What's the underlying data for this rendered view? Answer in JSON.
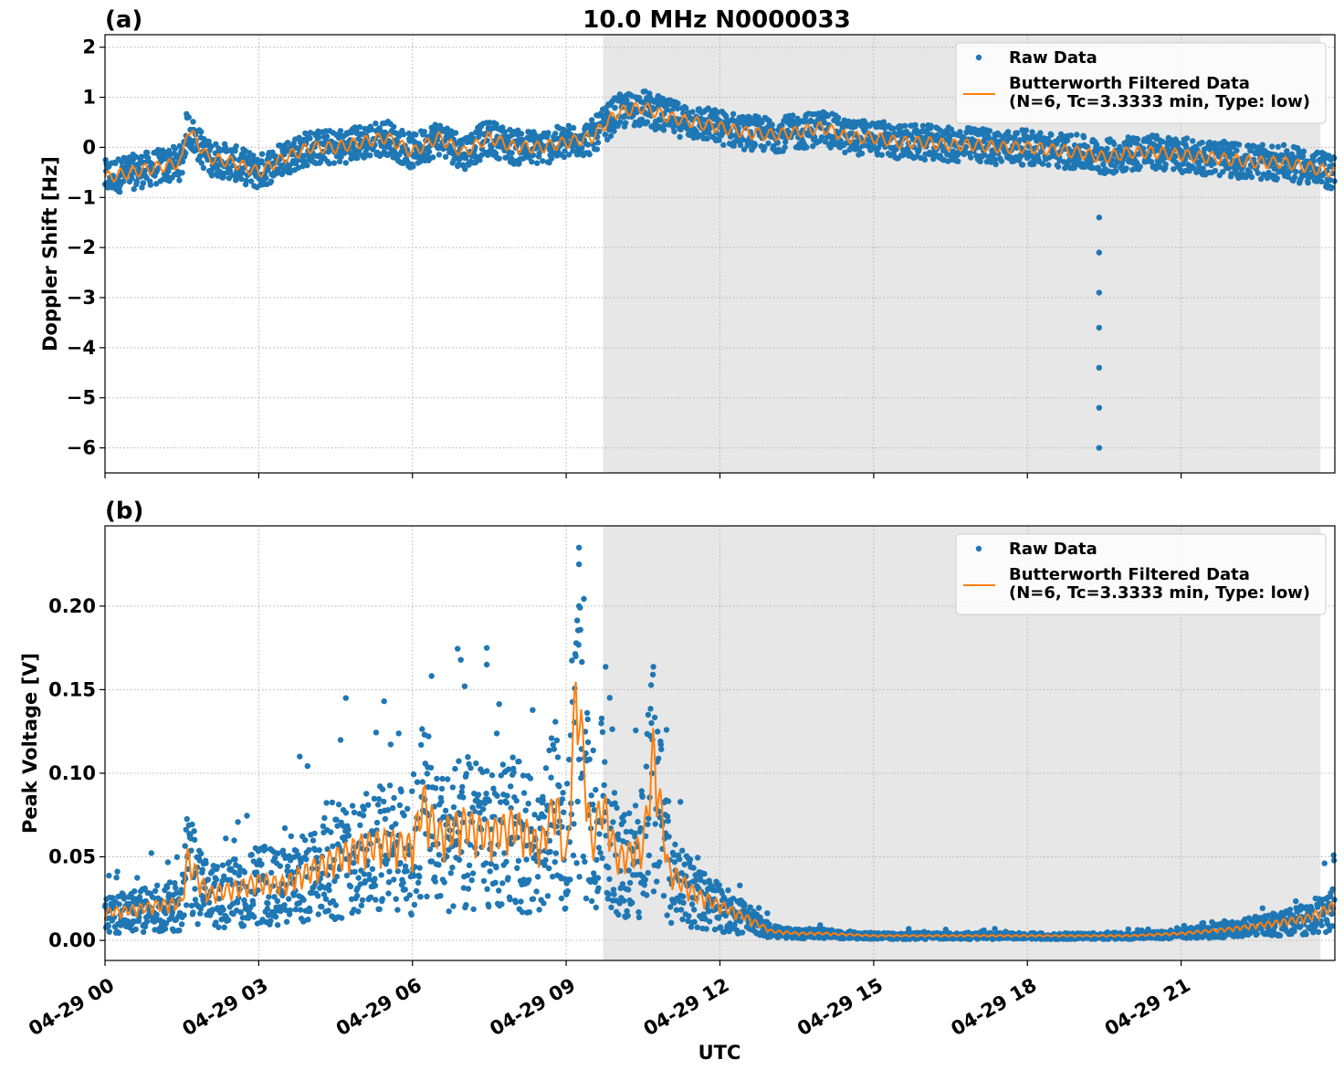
{
  "figure": {
    "title": "10.0 MHz N0000033",
    "xlabel": "UTC"
  },
  "colors": {
    "raw": "#1f77b4",
    "filtered": "#ff7f0e",
    "shade": "#e7e7e7",
    "grid": "#b0b0b0"
  },
  "chart_data": [
    {
      "type": "scatter",
      "panel_label": "(a)",
      "title": "10.0 MHz N0000033",
      "ylabel": "Doppler Shift [Hz]",
      "xlabel": "",
      "xlim": [
        0,
        24
      ],
      "ylim": [
        -6.5,
        2.25
      ],
      "xticks": [
        0,
        3,
        6,
        9,
        12,
        15,
        18,
        21
      ],
      "yticks": [
        2,
        1,
        0,
        -1,
        -2,
        -3,
        -4,
        -5,
        -6
      ],
      "ytick_labels": [
        "2",
        "1",
        "0",
        "−1",
        "−2",
        "−3",
        "−4",
        "−5",
        "−6"
      ],
      "shaded_x_range": [
        9.72,
        23.72
      ],
      "grid": true,
      "legend_position": "top-right",
      "series": [
        {
          "name": "Raw Data",
          "kind": "scatter",
          "x": [
            0,
            0.5,
            1,
            1.5,
            1.6,
            2,
            2.5,
            3,
            3.5,
            4,
            4.5,
            5,
            5.5,
            6,
            6.5,
            7,
            7.5,
            8,
            8.5,
            9,
            9.5,
            10,
            10.5,
            11,
            11.5,
            12,
            12.5,
            13,
            13.5,
            14,
            14.5,
            15,
            15.5,
            16,
            16.5,
            17,
            17.5,
            18,
            18.5,
            19,
            19.5,
            20,
            20.5,
            21,
            21.5,
            22,
            22.5,
            23,
            23.5,
            24
          ],
          "y": [
            -0.6,
            -0.5,
            -0.4,
            -0.3,
            0.4,
            -0.2,
            -0.3,
            -0.5,
            -0.2,
            0,
            0,
            0.1,
            0.2,
            -0.1,
            0.2,
            -0.1,
            0.2,
            0,
            0,
            0.1,
            0.2,
            0.7,
            0.8,
            0.6,
            0.5,
            0.4,
            0.3,
            0.25,
            0.3,
            0.4,
            0.2,
            0.2,
            0.1,
            0.1,
            0.05,
            0.05,
            0,
            0,
            -0.05,
            -0.1,
            -0.2,
            -0.1,
            -0.1,
            -0.15,
            -0.2,
            -0.25,
            -0.3,
            -0.3,
            -0.4,
            -0.5
          ],
          "spread": 0.35
        },
        {
          "name": "Butterworth Filtered Data\n(N=6, Tc=3.3333 min, Type: low)",
          "kind": "line",
          "x": [
            0,
            0.5,
            1,
            1.5,
            1.6,
            2,
            2.5,
            3,
            3.5,
            4,
            4.5,
            5,
            5.5,
            6,
            6.5,
            7,
            7.5,
            8,
            8.5,
            9,
            9.5,
            10,
            10.5,
            11,
            11.5,
            12,
            12.5,
            13,
            13.5,
            14,
            14.5,
            15,
            15.5,
            16,
            16.5,
            17,
            17.5,
            18,
            18.5,
            19,
            19.5,
            20,
            20.5,
            21,
            21.5,
            22,
            22.5,
            23,
            23.5,
            24
          ],
          "y": [
            -0.6,
            -0.5,
            -0.4,
            -0.3,
            0.4,
            -0.2,
            -0.3,
            -0.5,
            -0.2,
            0,
            0,
            0.1,
            0.2,
            -0.1,
            0.2,
            -0.1,
            0.2,
            0,
            0,
            0.1,
            0.2,
            0.7,
            0.8,
            0.6,
            0.5,
            0.4,
            0.3,
            0.25,
            0.3,
            0.4,
            0.2,
            0.2,
            0.1,
            0.1,
            0.05,
            0.05,
            0,
            0,
            -0.05,
            -0.1,
            -0.2,
            -0.1,
            -0.1,
            -0.15,
            -0.2,
            -0.25,
            -0.3,
            -0.3,
            -0.4,
            -0.5
          ]
        }
      ],
      "outliers": {
        "x": [
          19.4,
          19.4,
          19.4,
          19.4,
          19.4,
          19.4,
          19.4
        ],
        "y": [
          -6.0,
          -5.2,
          -4.4,
          -3.6,
          -2.9,
          -2.1,
          -1.4
        ]
      }
    },
    {
      "type": "scatter",
      "panel_label": "(b)",
      "title": "",
      "ylabel": "Peak Voltage [V]",
      "xlabel": "UTC",
      "xlim": [
        0,
        24
      ],
      "ylim": [
        -0.012,
        0.248
      ],
      "xticks": [
        0,
        3,
        6,
        9,
        12,
        15,
        18,
        21
      ],
      "xtick_labels": [
        "04-29 00",
        "04-29 03",
        "04-29 06",
        "04-29 09",
        "04-29 12",
        "04-29 15",
        "04-29 18",
        "04-29 21"
      ],
      "yticks": [
        0,
        0.05,
        0.1,
        0.15,
        0.2
      ],
      "ytick_labels": [
        "0.00",
        "0.05",
        "0.10",
        "0.15",
        "0.20"
      ],
      "shaded_x_range": [
        9.72,
        23.72
      ],
      "grid": true,
      "legend_position": "top-right",
      "series": [
        {
          "name": "Raw Data",
          "kind": "scatter",
          "x": [
            0,
            0.5,
            1,
            1.5,
            1.6,
            2,
            2.5,
            3,
            3.5,
            4,
            4.5,
            5,
            5.5,
            6,
            6.2,
            6.5,
            7,
            7.5,
            8,
            8.5,
            8.8,
            9,
            9.2,
            9.5,
            9.7,
            10,
            10.5,
            10.7,
            11,
            11.5,
            12,
            12.5,
            13,
            13.5,
            14,
            15,
            16,
            17,
            18,
            19,
            20,
            21,
            22,
            23,
            23.5,
            24
          ],
          "y": [
            0.012,
            0.013,
            0.015,
            0.016,
            0.035,
            0.02,
            0.022,
            0.025,
            0.024,
            0.03,
            0.035,
            0.04,
            0.042,
            0.04,
            0.06,
            0.045,
            0.05,
            0.045,
            0.05,
            0.04,
            0.06,
            0.03,
            0.11,
            0.04,
            0.06,
            0.035,
            0.04,
            0.08,
            0.03,
            0.02,
            0.015,
            0.01,
            0.004,
            0.003,
            0.003,
            0.002,
            0.002,
            0.002,
            0.002,
            0.002,
            0.002,
            0.003,
            0.005,
            0.008,
            0.01,
            0.015
          ],
          "spread": 0.5
        },
        {
          "name": "Butterworth Filtered Data\n(N=6, Tc=3.3333 min, Type: low)",
          "kind": "line",
          "x": [
            0,
            0.5,
            1,
            1.5,
            1.6,
            2,
            2.5,
            3,
            3.5,
            4,
            4.5,
            5,
            5.5,
            6,
            6.2,
            6.5,
            7,
            7.5,
            8,
            8.5,
            8.8,
            9,
            9.2,
            9.5,
            9.7,
            10,
            10.5,
            10.7,
            11,
            11.5,
            12,
            12.5,
            13,
            13.5,
            14,
            15,
            16,
            17,
            18,
            19,
            20,
            21,
            22,
            23,
            23.5,
            24
          ],
          "y": [
            0.012,
            0.013,
            0.015,
            0.016,
            0.035,
            0.02,
            0.022,
            0.025,
            0.024,
            0.03,
            0.035,
            0.04,
            0.042,
            0.04,
            0.06,
            0.045,
            0.05,
            0.045,
            0.05,
            0.04,
            0.06,
            0.03,
            0.11,
            0.04,
            0.06,
            0.035,
            0.04,
            0.08,
            0.03,
            0.02,
            0.015,
            0.01,
            0.004,
            0.003,
            0.003,
            0.002,
            0.002,
            0.002,
            0.002,
            0.002,
            0.002,
            0.003,
            0.005,
            0.008,
            0.01,
            0.015
          ]
        }
      ],
      "outliers": {
        "x": [
          9.25,
          9.25,
          9.25,
          7.45,
          7.45,
          4.7,
          3.8,
          10.6
        ],
        "y": [
          0.235,
          0.225,
          0.2,
          0.175,
          0.165,
          0.145,
          0.11,
          0.135
        ]
      }
    }
  ]
}
